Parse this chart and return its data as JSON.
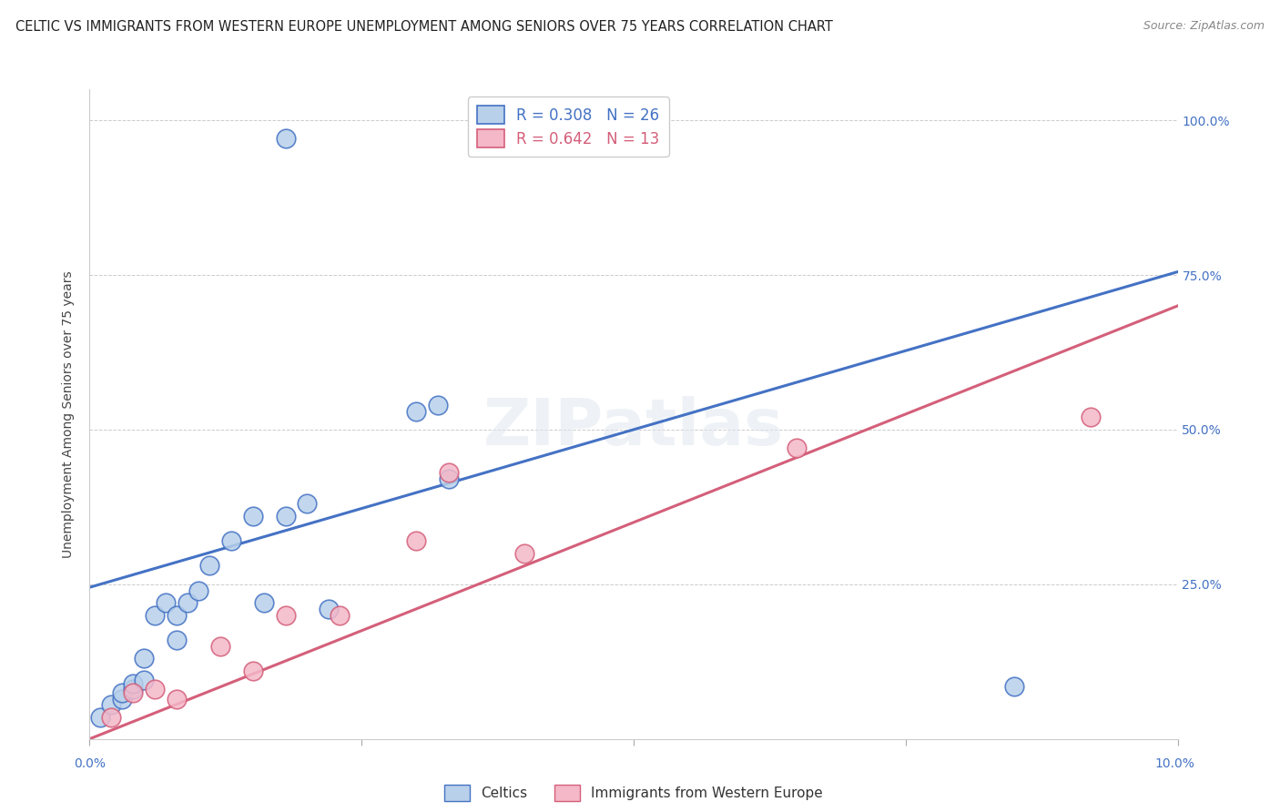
{
  "title": "CELTIC VS IMMIGRANTS FROM WESTERN EUROPE UNEMPLOYMENT AMONG SENIORS OVER 75 YEARS CORRELATION CHART",
  "source": "Source: ZipAtlas.com",
  "ylabel": "Unemployment Among Seniors over 75 years",
  "xlim": [
    0.0,
    0.1
  ],
  "ylim": [
    0.0,
    1.05
  ],
  "celtics_R": 0.308,
  "celtics_N": 26,
  "immigrants_R": 0.642,
  "immigrants_N": 13,
  "celtics_color": "#b8d0ea",
  "celtics_line_color": "#4472c4",
  "immigrants_color": "#f4b8c8",
  "immigrants_line_color": "#d45f7a",
  "celtics_x": [
    0.001,
    0.002,
    0.003,
    0.003,
    0.004,
    0.004,
    0.005,
    0.005,
    0.006,
    0.007,
    0.008,
    0.008,
    0.009,
    0.01,
    0.011,
    0.013,
    0.015,
    0.016,
    0.018,
    0.02,
    0.022,
    0.03,
    0.032,
    0.033,
    0.085,
    0.018
  ],
  "celtics_y": [
    0.035,
    0.055,
    0.065,
    0.075,
    0.08,
    0.09,
    0.095,
    0.13,
    0.2,
    0.22,
    0.16,
    0.2,
    0.22,
    0.24,
    0.28,
    0.32,
    0.36,
    0.22,
    0.36,
    0.38,
    0.21,
    0.53,
    0.54,
    0.42,
    0.085,
    0.97
  ],
  "immigrants_x": [
    0.002,
    0.004,
    0.006,
    0.008,
    0.012,
    0.015,
    0.018,
    0.023,
    0.03,
    0.033,
    0.04,
    0.065,
    0.092
  ],
  "immigrants_y": [
    0.035,
    0.075,
    0.08,
    0.065,
    0.15,
    0.11,
    0.2,
    0.2,
    0.32,
    0.43,
    0.3,
    0.47,
    0.52
  ],
  "line_blue_x0": 0.0,
  "line_blue_y0": 0.245,
  "line_blue_x1": 0.1,
  "line_blue_y1": 0.755,
  "line_pink_x0": 0.0,
  "line_pink_y0": 0.0,
  "line_pink_x1": 0.1,
  "line_pink_y1": 0.7,
  "watermark": "ZIPatlas",
  "title_fontsize": 10.5,
  "source_fontsize": 9,
  "ylabel_fontsize": 10,
  "tick_fontsize": 10,
  "legend_fontsize": 12,
  "scatter_size": 220,
  "line_width": 2.2
}
